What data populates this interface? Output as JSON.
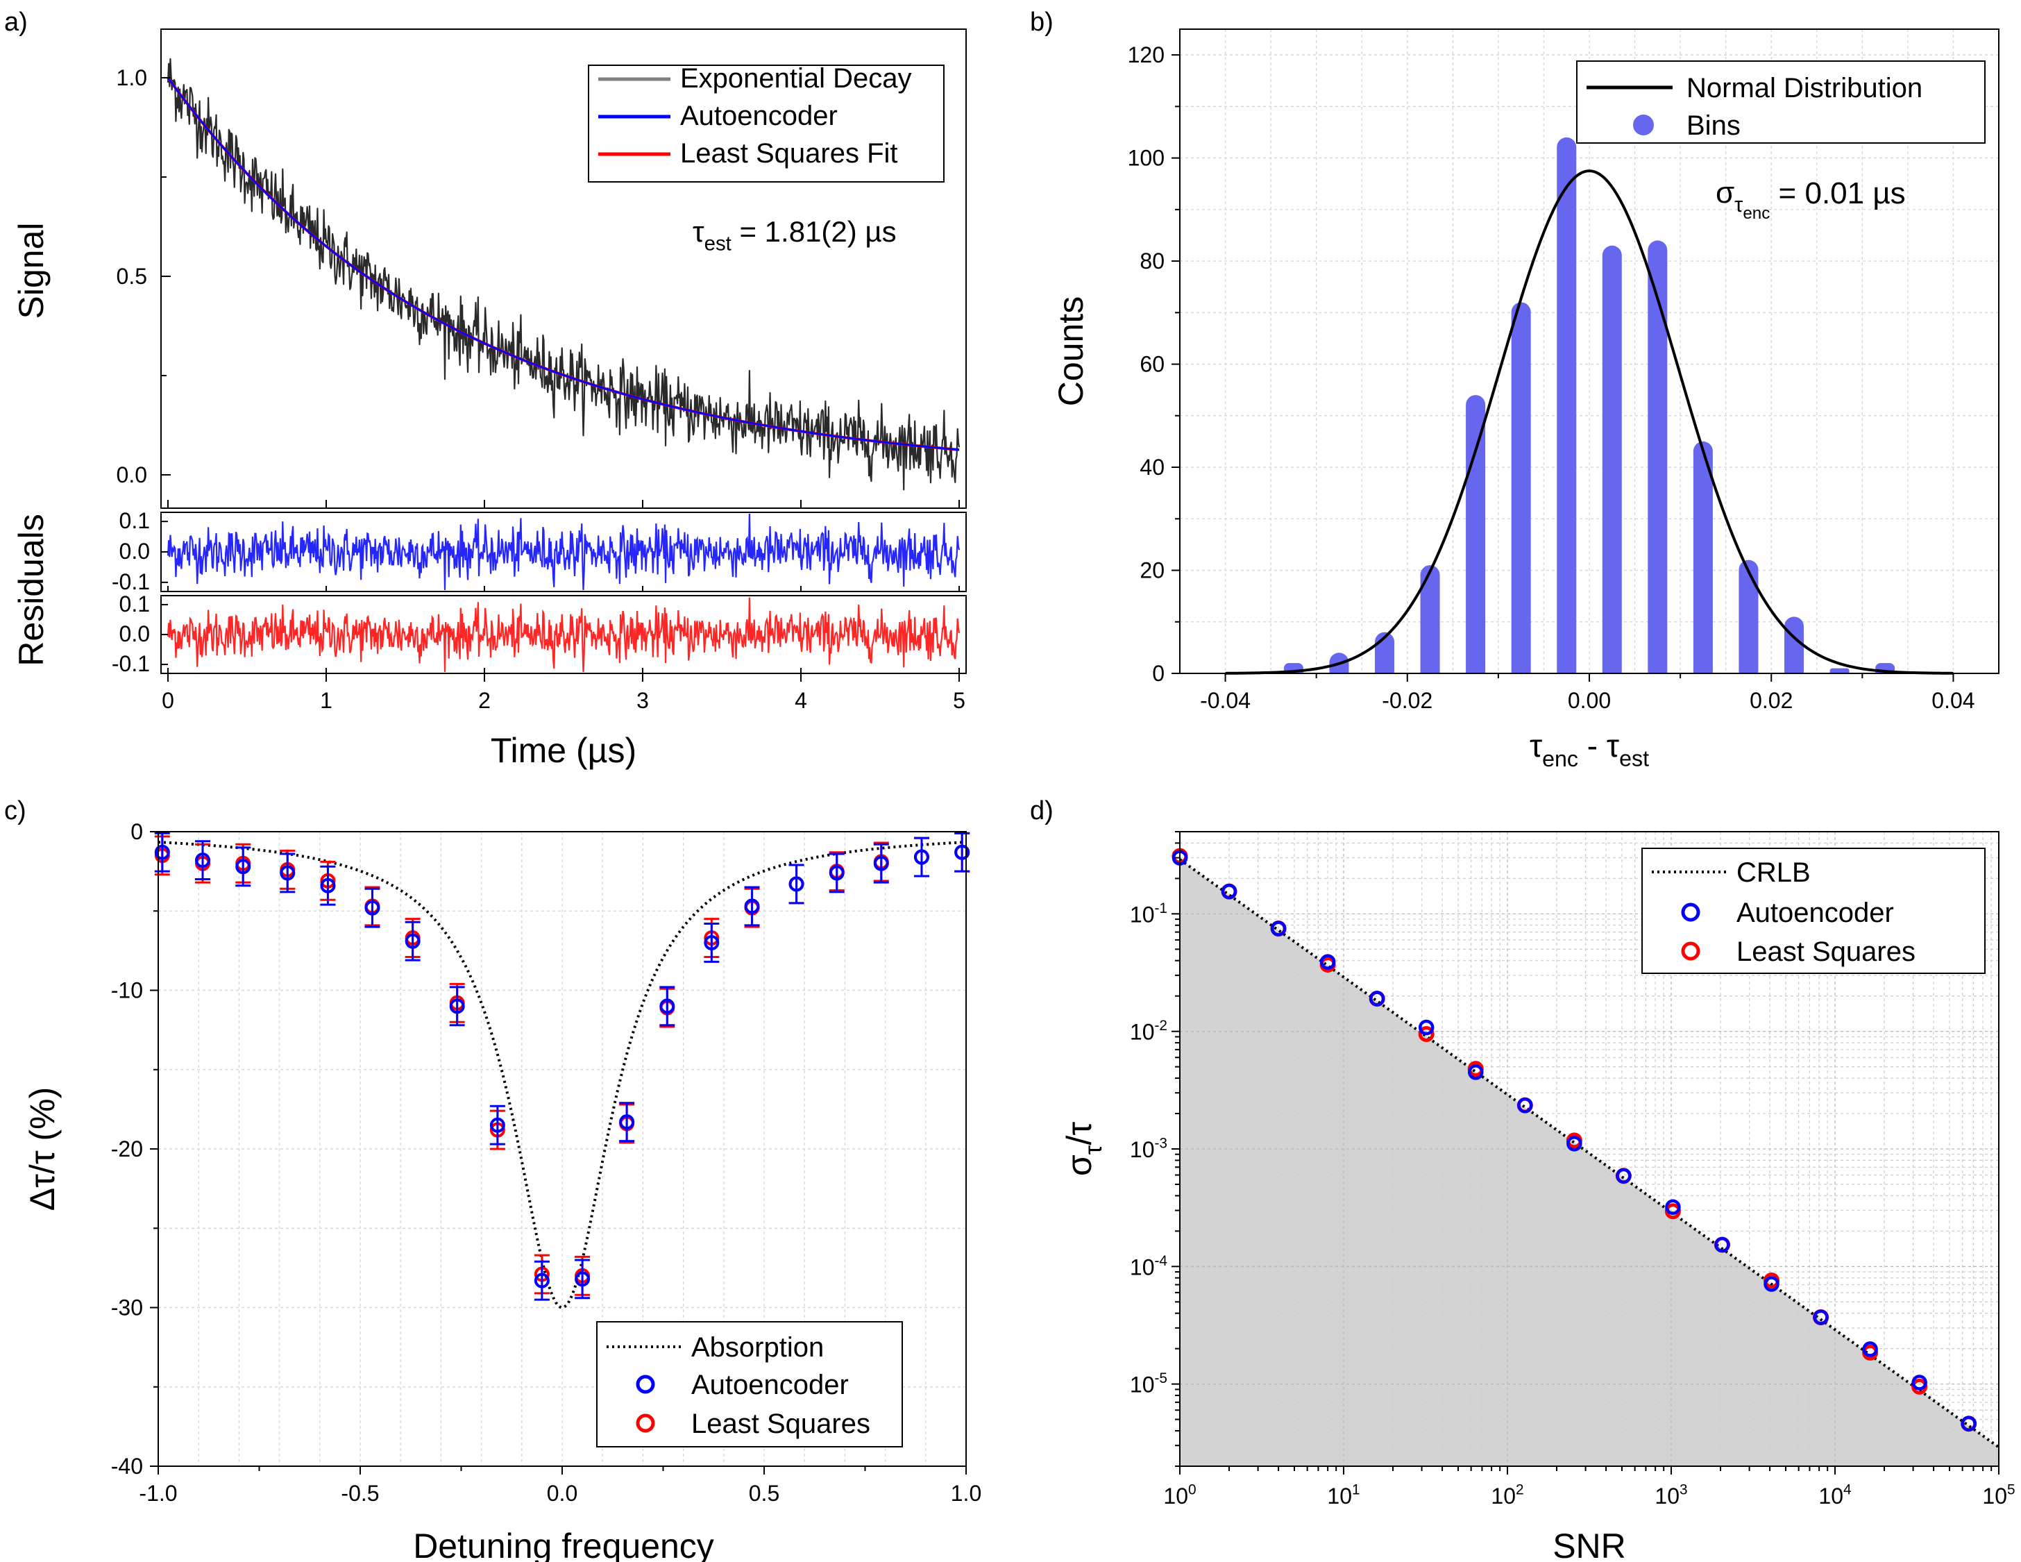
{
  "panels": {
    "a": {
      "label": "a)",
      "chart_data": {
        "type": "line",
        "ylabel": "Signal",
        "residuals_ylabel": "Residuals",
        "xlabel": "Time (µs)",
        "xlim": [
          0,
          5
        ],
        "ylim": [
          -0.05,
          1.1
        ],
        "xticks": [
          "0",
          "1",
          "2",
          "3",
          "4",
          "5"
        ],
        "yticks": [
          "0.0",
          "0.5",
          "1.0"
        ],
        "residual_yticks": [
          "0.1",
          "0.0",
          "-0.1"
        ],
        "series": [
          {
            "name": "Exponential Decay",
            "color": "#808080",
            "tau": 1.81,
            "amplitude": 1.0,
            "noise": 0.04
          },
          {
            "name": "Autoencoder",
            "color": "#0000ff",
            "tau": 1.81,
            "amplitude": 1.0
          },
          {
            "name": "Least Squares Fit",
            "color": "#ff0000",
            "tau": 1.81,
            "amplitude": 1.0
          }
        ],
        "annotation": {
          "symbol": "τ",
          "sub": "est",
          "text": " = 1.81(2) µs"
        }
      }
    },
    "b": {
      "label": "b)",
      "chart_data": {
        "type": "bar",
        "ylabel": "Counts",
        "xlabel": {
          "a": "τ",
          "a_sub": "enc",
          "mid": " - ",
          "b": "τ",
          "b_sub": "est"
        },
        "xlim": [
          -0.045,
          0.045
        ],
        "ylim": [
          0,
          125
        ],
        "xticks": [
          "-0.04",
          "-0.02",
          "0.00",
          "0.02",
          "0.04"
        ],
        "yticks": [
          "0",
          "20",
          "40",
          "60",
          "80",
          "100",
          "120"
        ],
        "bins_x": [
          -0.0325,
          -0.0275,
          -0.0225,
          -0.0175,
          -0.0125,
          -0.0075,
          -0.0025,
          0.0025,
          0.0075,
          0.0125,
          0.0175,
          0.0225,
          0.0275,
          0.0325
        ],
        "bins_y": [
          2,
          4,
          8,
          21,
          54,
          72,
          104,
          83,
          84,
          45,
          22,
          11,
          1,
          2
        ],
        "normal": {
          "name": "Normal Distribution",
          "mu": 0.0,
          "sigma": 0.0098,
          "peak": 97.5,
          "color": "#000000"
        },
        "bins_name": "Bins",
        "bins_color": "#6666ee",
        "annotation": {
          "symbol": "σ",
          "sub": "τ",
          "subsub": "enc",
          "text": " = 0.01 µs"
        }
      }
    },
    "c": {
      "label": "c)",
      "chart_data": {
        "type": "scatter",
        "ylabel": "Δτ/τ (%)",
        "xlabel": "Detuning frequency",
        "xlim": [
          -1.0,
          1.0
        ],
        "ylim": [
          -40,
          0
        ],
        "xticks": [
          "-1.0",
          "-0.5",
          "0.0",
          "0.5",
          "1.0"
        ],
        "yticks": [
          "0",
          "-10",
          "-20",
          "-30",
          "-40"
        ],
        "x": [
          -0.99,
          -0.89,
          -0.79,
          -0.68,
          -0.58,
          -0.47,
          -0.37,
          -0.26,
          -0.16,
          -0.05,
          0.05,
          0.16,
          0.26,
          0.37,
          0.47,
          0.58,
          0.68,
          0.79,
          0.89,
          0.99
        ],
        "absorption_name": "Absorption",
        "absorption_width": 0.15,
        "absorption_depth": 30,
        "series": [
          {
            "name": "Autoencoder",
            "color": "#0000ff",
            "y": [
              -1.3,
              -1.8,
              -2.2,
              -2.6,
              -3.4,
              -4.8,
              -6.9,
              -11.0,
              -18.5,
              -28.3,
              -28.2,
              -18.3,
              -11.0,
              -7.0,
              -4.7,
              -3.3,
              -2.6,
              -2.0,
              -1.6,
              -1.3
            ],
            "err": 1.2
          },
          {
            "name": "Least Squares",
            "color": "#ff0000",
            "y": [
              -1.5,
              -2.0,
              -2.0,
              -2.4,
              -3.1,
              -4.7,
              -6.7,
              -10.8,
              -18.8,
              -27.9,
              -28.0,
              -18.4,
              -11.1,
              -6.7,
              -4.8,
              -3.3,
              -2.5,
              -1.9,
              -1.6,
              -1.3
            ],
            "err": 1.2
          }
        ]
      }
    },
    "d": {
      "label": "d)",
      "chart_data": {
        "type": "scatter",
        "xscale": "log",
        "yscale": "log",
        "ylabel": {
          "a": "σ",
          "a_sub": "τ",
          "rest": "/τ"
        },
        "xlabel": "SNR",
        "xlim": [
          1,
          100000
        ],
        "ylim": [
          2e-06,
          0.5
        ],
        "xticks": [
          {
            "base": "10",
            "exp": "0"
          },
          {
            "base": "10",
            "exp": "1"
          },
          {
            "base": "10",
            "exp": "2"
          },
          {
            "base": "10",
            "exp": "3"
          },
          {
            "base": "10",
            "exp": "4"
          },
          {
            "base": "10",
            "exp": "5"
          }
        ],
        "yticks": [
          {
            "base": "10",
            "exp": "-1"
          },
          {
            "base": "10",
            "exp": "-2"
          },
          {
            "base": "10",
            "exp": "-3"
          },
          {
            "base": "10",
            "exp": "-4"
          },
          {
            "base": "10",
            "exp": "-5"
          }
        ],
        "crlb_name": "CRLB",
        "crlb_coefficient": 0.29,
        "x": [
          1,
          2,
          4,
          8,
          16,
          32,
          64,
          128,
          256,
          512,
          1024,
          2048,
          4096,
          8192,
          16384,
          32768,
          65536
        ],
        "series": [
          {
            "name": "Autoencoder",
            "color": "#0000ff",
            "y": [
              0.3,
              0.155,
              0.075,
              0.039,
              0.019,
              0.0108,
              0.0045,
              0.00235,
              0.00111,
              0.00059,
              0.00032,
              0.000153,
              7.1e-05,
              3.7e-05,
              1.98e-05,
              1.03e-05,
              4.6e-06
            ]
          },
          {
            "name": "Least Squares",
            "color": "#ff0000",
            "y": [
              0.31,
              0.155,
              0.075,
              0.037,
              0.019,
              0.0095,
              0.0048,
              0.00235,
              0.00118,
              0.00059,
              0.000295,
              0.000153,
              7.6e-05,
              3.7e-05,
              1.85e-05,
              9.5e-06,
              4.6e-06
            ]
          }
        ]
      }
    }
  }
}
